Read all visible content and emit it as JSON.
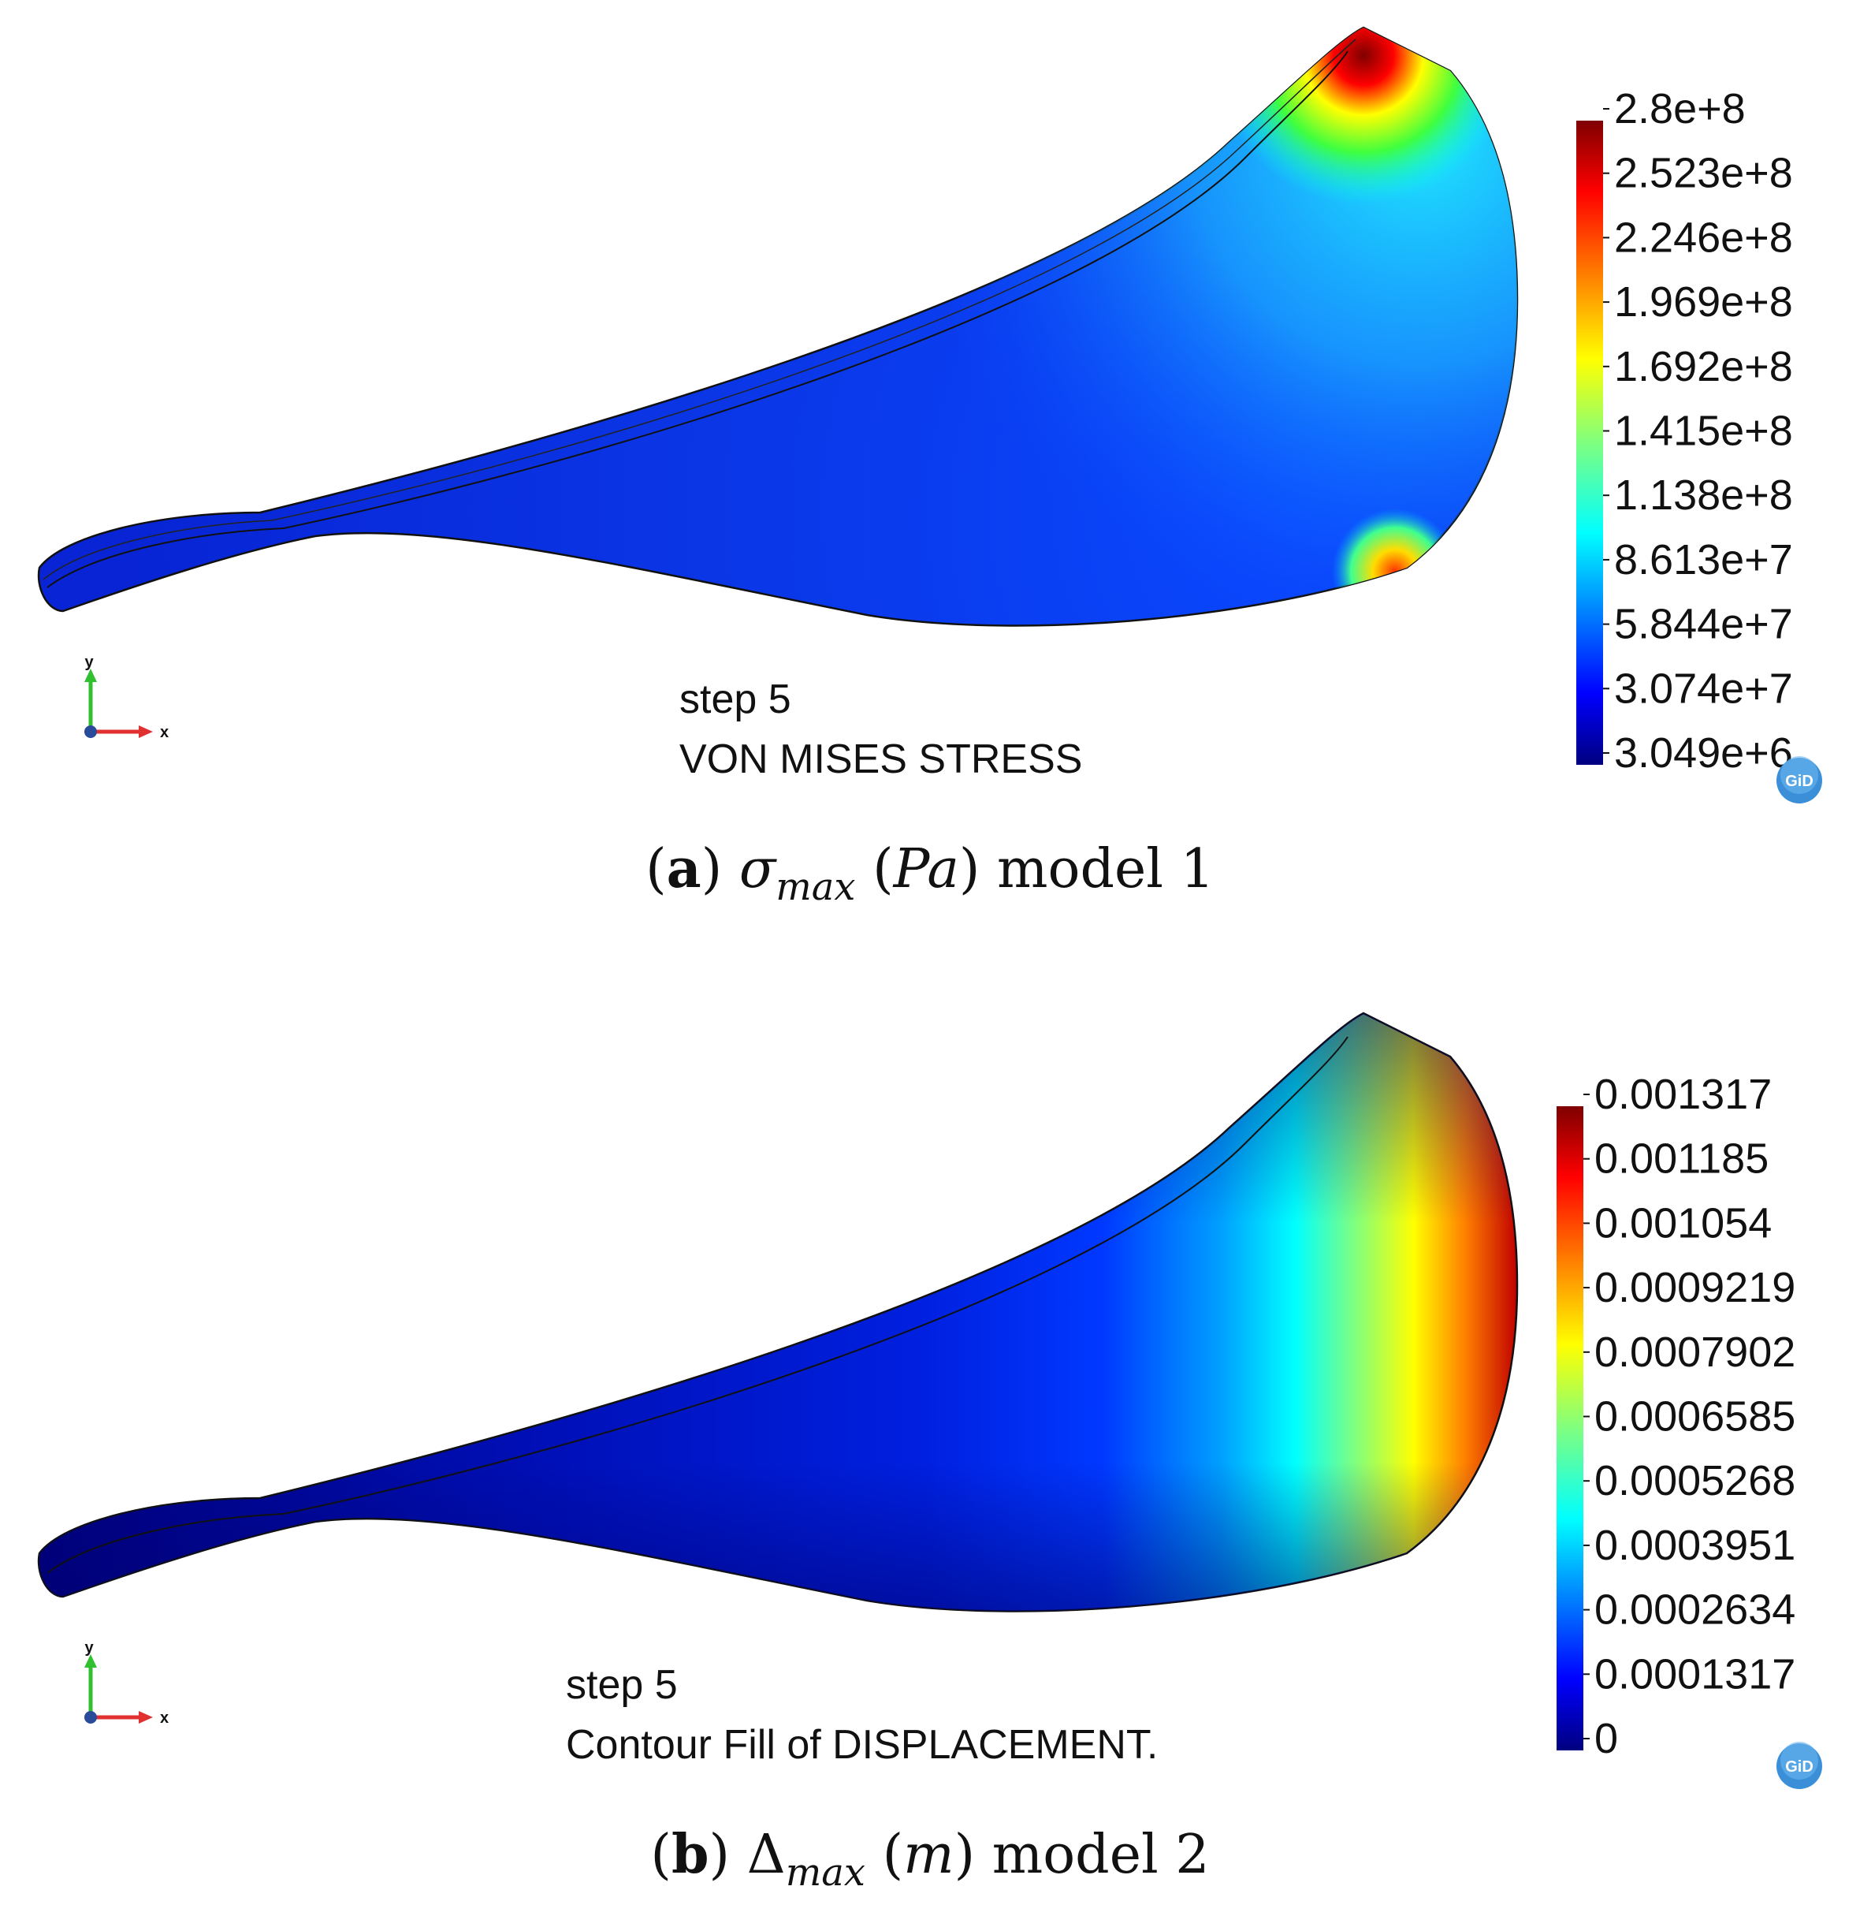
{
  "panel_a": {
    "step_label": "step 5",
    "result_title": "VON MISES STRESS",
    "legend_ticks": [
      "2.8e+8",
      "2.523e+8",
      "2.246e+8",
      "1.969e+8",
      "1.692e+8",
      "1.415e+8",
      "1.138e+8",
      "8.613e+7",
      "5.844e+7",
      "3.074e+7",
      "3.049e+6"
    ],
    "caption": {
      "letter": "a",
      "symbol": "σ",
      "subscript": "max",
      "unit": "Pa",
      "suffix": "model 1"
    },
    "axis_x": "x",
    "axis_y": "y",
    "logo": "GiD"
  },
  "panel_b": {
    "step_label": "step 5",
    "result_title": "Contour Fill of DISPLACEMENT.",
    "legend_ticks": [
      "0.001317",
      "0.001185",
      "0.001054",
      "0.0009219",
      "0.0007902",
      "0.0006585",
      "0.0005268",
      "0.0003951",
      "0.0002634",
      "0.0001317",
      "0"
    ],
    "caption": {
      "letter": "b",
      "symbol": "Δ",
      "subscript": "max",
      "unit": "m",
      "suffix": "model 2"
    },
    "axis_x": "x",
    "axis_y": "y",
    "logo": "GiD"
  },
  "colors": {
    "jet": [
      "#00007f",
      "#0000ff",
      "#007fff",
      "#00ffff",
      "#7fff7f",
      "#ffff00",
      "#ff7f00",
      "#ff0000",
      "#7f0000"
    ]
  }
}
